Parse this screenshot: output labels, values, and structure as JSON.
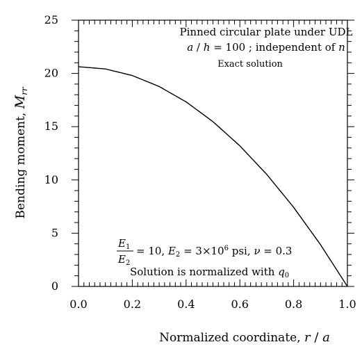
{
  "chart_data": {
    "type": "line",
    "title": "",
    "annotations": {
      "line1": "Pinned circular plate under UDL",
      "line2": "a / h = 100 ; independent of n",
      "line3": "Exact solution",
      "params_numerator": "E1",
      "params_denominator": "E2",
      "params_rest": "= 10,  E2 = 3×10^6 psi, ν = 0.3",
      "normalization": "Solution is normalized with q0"
    },
    "xlabel": "Normalized coordinate,  r / a",
    "ylabel": "Bending moment,  M_rr",
    "xlim": [
      0.0,
      1.0
    ],
    "ylim": [
      0,
      25
    ],
    "xticks": [
      "0.0",
      "0.2",
      "0.4",
      "0.6",
      "0.8",
      "1.0"
    ],
    "yticks": [
      "0",
      "5",
      "10",
      "15",
      "20",
      "25"
    ],
    "grid": false,
    "series": [
      {
        "x": [
          0.0,
          0.1,
          0.2,
          0.3,
          0.4,
          0.5,
          0.6,
          0.7,
          0.8,
          0.9,
          1.0
        ],
        "values": [
          20.63,
          20.42,
          19.8,
          18.77,
          17.33,
          15.47,
          13.2,
          10.52,
          7.43,
          3.92,
          0.0
        ]
      }
    ]
  }
}
